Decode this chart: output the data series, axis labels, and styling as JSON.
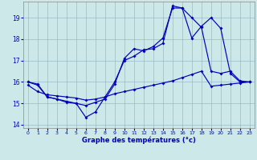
{
  "xlabel": "Graphe des températures (°c)",
  "background_color": "#cce8e8",
  "line_color": "#0000bb",
  "grid_color": "#99bbcc",
  "xlim": [
    -0.5,
    23.5
  ],
  "ylim": [
    13.85,
    19.75
  ],
  "xticks": [
    0,
    1,
    2,
    3,
    4,
    5,
    6,
    7,
    8,
    9,
    10,
    11,
    12,
    13,
    14,
    15,
    16,
    17,
    18,
    19,
    20,
    21,
    22,
    23
  ],
  "yticks": [
    14,
    15,
    16,
    17,
    18,
    19
  ],
  "line1_x": [
    0,
    1,
    2,
    3,
    4,
    5,
    6,
    7,
    8,
    9,
    10,
    11,
    12,
    13,
    14,
    15,
    16,
    17,
    18,
    19,
    20,
    21,
    22,
    23
  ],
  "line1_y": [
    16.0,
    15.9,
    15.3,
    15.2,
    15.1,
    15.0,
    14.35,
    14.6,
    15.3,
    16.0,
    17.0,
    17.2,
    17.5,
    17.55,
    17.8,
    19.55,
    19.45,
    19.0,
    18.55,
    16.5,
    16.4,
    16.5,
    16.05,
    16.0
  ],
  "line2_x": [
    0,
    1,
    2,
    3,
    4,
    5,
    6,
    7,
    8,
    9,
    10,
    11,
    12,
    13,
    14,
    15,
    16,
    17,
    18,
    19,
    20,
    21,
    22,
    23
  ],
  "line2_y": [
    16.0,
    15.85,
    15.3,
    15.2,
    15.05,
    15.0,
    14.9,
    15.05,
    15.2,
    15.9,
    17.1,
    17.55,
    17.45,
    17.65,
    18.05,
    19.45,
    19.45,
    18.05,
    18.6,
    19.0,
    18.5,
    16.4,
    16.0,
    16.0
  ],
  "line3_x": [
    0,
    1,
    2,
    3,
    4,
    5,
    6,
    7,
    8,
    9,
    10,
    11,
    12,
    13,
    14,
    15,
    16,
    17,
    18,
    19,
    20,
    21,
    22,
    23
  ],
  "line3_y": [
    15.85,
    15.55,
    15.4,
    15.35,
    15.3,
    15.25,
    15.15,
    15.2,
    15.3,
    15.45,
    15.55,
    15.65,
    15.75,
    15.85,
    15.95,
    16.05,
    16.2,
    16.35,
    16.5,
    15.8,
    15.85,
    15.9,
    15.95,
    16.0
  ]
}
